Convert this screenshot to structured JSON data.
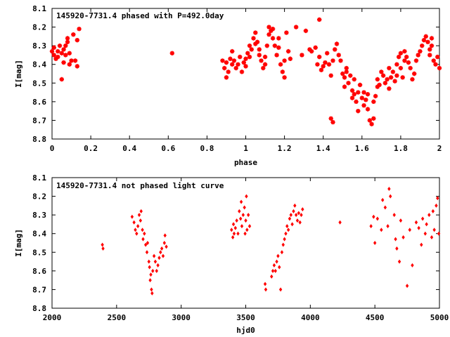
{
  "chart_data": [
    {
      "type": "scatter",
      "title": "145920-7731.4 phased with P=492.0day",
      "xlabel": "phase",
      "ylabel": "I[mag]",
      "xlim": [
        0,
        2
      ],
      "ylim": [
        8.8,
        8.1
      ],
      "y_inverted": true,
      "marker": "star",
      "color": "#ff0000",
      "xticks": [
        "0",
        "0.2",
        "0.4",
        "0.6",
        "0.8",
        "1",
        "1.2",
        "1.4",
        "1.6",
        "1.8",
        "2"
      ],
      "yticks": [
        "8.1",
        "8.2",
        "8.3",
        "8.4",
        "8.5",
        "8.6",
        "8.7",
        "8.8"
      ],
      "points": [
        [
          0.0,
          8.33
        ],
        [
          0.01,
          8.31
        ],
        [
          0.01,
          8.35
        ],
        [
          0.02,
          8.37
        ],
        [
          0.03,
          8.33
        ],
        [
          0.03,
          8.36
        ],
        [
          0.04,
          8.3
        ],
        [
          0.05,
          8.34
        ],
        [
          0.05,
          8.48
        ],
        [
          0.06,
          8.39
        ],
        [
          0.06,
          8.32
        ],
        [
          0.07,
          8.35
        ],
        [
          0.07,
          8.3
        ],
        [
          0.08,
          8.28
        ],
        [
          0.08,
          8.26
        ],
        [
          0.09,
          8.34
        ],
        [
          0.09,
          8.4
        ],
        [
          0.1,
          8.38
        ],
        [
          0.11,
          8.24
        ],
        [
          0.12,
          8.38
        ],
        [
          0.13,
          8.27
        ],
        [
          0.13,
          8.41
        ],
        [
          0.14,
          8.21
        ],
        [
          0.62,
          8.34
        ],
        [
          0.88,
          8.38
        ],
        [
          0.89,
          8.42
        ],
        [
          0.9,
          8.39
        ],
        [
          0.9,
          8.47
        ],
        [
          0.91,
          8.44
        ],
        [
          0.92,
          8.37
        ],
        [
          0.93,
          8.4
        ],
        [
          0.93,
          8.33
        ],
        [
          0.94,
          8.38
        ],
        [
          0.95,
          8.42
        ],
        [
          0.96,
          8.4
        ],
        [
          0.97,
          8.36
        ],
        [
          0.98,
          8.44
        ],
        [
          0.99,
          8.39
        ],
        [
          1.0,
          8.41
        ],
        [
          1.0,
          8.37
        ],
        [
          1.01,
          8.34
        ],
        [
          1.02,
          8.3
        ],
        [
          1.02,
          8.36
        ],
        [
          1.03,
          8.32
        ],
        [
          1.04,
          8.26
        ],
        [
          1.05,
          8.23
        ],
        [
          1.05,
          8.29
        ],
        [
          1.06,
          8.28
        ],
        [
          1.07,
          8.32
        ],
        [
          1.07,
          8.35
        ],
        [
          1.08,
          8.38
        ],
        [
          1.09,
          8.42
        ],
        [
          1.1,
          8.4
        ],
        [
          1.1,
          8.36
        ],
        [
          1.11,
          8.3
        ],
        [
          1.12,
          8.24
        ],
        [
          1.12,
          8.2
        ],
        [
          1.13,
          8.22
        ],
        [
          1.14,
          8.26
        ],
        [
          1.14,
          8.21
        ],
        [
          1.15,
          8.3
        ],
        [
          1.16,
          8.35
        ],
        [
          1.17,
          8.26
        ],
        [
          1.17,
          8.31
        ],
        [
          1.18,
          8.4
        ],
        [
          1.19,
          8.44
        ],
        [
          1.2,
          8.47
        ],
        [
          1.2,
          8.38
        ],
        [
          1.21,
          8.23
        ],
        [
          1.22,
          8.33
        ],
        [
          1.23,
          8.37
        ],
        [
          1.26,
          8.2
        ],
        [
          1.29,
          8.35
        ],
        [
          1.31,
          8.22
        ],
        [
          1.33,
          8.32
        ],
        [
          1.34,
          8.33
        ],
        [
          1.36,
          8.31
        ],
        [
          1.37,
          8.4
        ],
        [
          1.38,
          8.16
        ],
        [
          1.38,
          8.36
        ],
        [
          1.39,
          8.43
        ],
        [
          1.4,
          8.41
        ],
        [
          1.41,
          8.39
        ],
        [
          1.42,
          8.34
        ],
        [
          1.43,
          8.4
        ],
        [
          1.44,
          8.46
        ],
        [
          1.44,
          8.69
        ],
        [
          1.45,
          8.71
        ],
        [
          1.45,
          8.38
        ],
        [
          1.46,
          8.32
        ],
        [
          1.47,
          8.29
        ],
        [
          1.48,
          8.35
        ],
        [
          1.49,
          8.38
        ],
        [
          1.5,
          8.45
        ],
        [
          1.51,
          8.52
        ],
        [
          1.51,
          8.47
        ],
        [
          1.52,
          8.42
        ],
        [
          1.53,
          8.5
        ],
        [
          1.54,
          8.46
        ],
        [
          1.55,
          8.54
        ],
        [
          1.56,
          8.48
        ],
        [
          1.56,
          8.56
        ],
        [
          1.57,
          8.6
        ],
        [
          1.58,
          8.55
        ],
        [
          1.58,
          8.65
        ],
        [
          1.59,
          8.51
        ],
        [
          1.6,
          8.58
        ],
        [
          1.61,
          8.62
        ],
        [
          1.61,
          8.55
        ],
        [
          1.62,
          8.59
        ],
        [
          1.63,
          8.64
        ],
        [
          1.63,
          8.56
        ],
        [
          1.64,
          8.7
        ],
        [
          1.65,
          8.72
        ],
        [
          1.66,
          8.6
        ],
        [
          1.66,
          8.69
        ],
        [
          1.67,
          8.57
        ],
        [
          1.68,
          8.52
        ],
        [
          1.68,
          8.48
        ],
        [
          1.69,
          8.51
        ],
        [
          1.7,
          8.44
        ],
        [
          1.71,
          8.46
        ],
        [
          1.72,
          8.5
        ],
        [
          1.73,
          8.48
        ],
        [
          1.74,
          8.53
        ],
        [
          1.74,
          8.42
        ],
        [
          1.75,
          8.47
        ],
        [
          1.76,
          8.44
        ],
        [
          1.77,
          8.49
        ],
        [
          1.78,
          8.4
        ],
        [
          1.78,
          8.46
        ],
        [
          1.79,
          8.36
        ],
        [
          1.8,
          8.34
        ],
        [
          1.8,
          8.42
        ],
        [
          1.81,
          8.47
        ],
        [
          1.82,
          8.33
        ],
        [
          1.82,
          8.38
        ],
        [
          1.83,
          8.36
        ],
        [
          1.84,
          8.39
        ],
        [
          1.85,
          8.42
        ],
        [
          1.86,
          8.48
        ],
        [
          1.87,
          8.45
        ],
        [
          1.88,
          8.38
        ],
        [
          1.89,
          8.35
        ],
        [
          1.9,
          8.33
        ],
        [
          1.91,
          8.3
        ],
        [
          1.92,
          8.27
        ],
        [
          1.93,
          8.25
        ],
        [
          1.94,
          8.28
        ],
        [
          1.95,
          8.32
        ],
        [
          1.95,
          8.35
        ],
        [
          1.96,
          8.3
        ],
        [
          1.97,
          8.38
        ],
        [
          1.98,
          8.4
        ],
        [
          1.99,
          8.36
        ],
        [
          2.0,
          8.42
        ],
        [
          1.96,
          8.26
        ],
        [
          1.52,
          8.44
        ],
        [
          1.55,
          8.58
        ]
      ]
    },
    {
      "type": "scatter",
      "title": "145920-7731.4 not phased light curve",
      "xlabel": "hjd0",
      "ylabel": "I[mag]",
      "xlim": [
        2000,
        5000
      ],
      "ylim": [
        8.8,
        8.1
      ],
      "y_inverted": true,
      "marker": "diamond",
      "color": "#ff0000",
      "xticks": [
        "2000",
        "2500",
        "3000",
        "3500",
        "4000",
        "4500",
        "5000"
      ],
      "yticks": [
        "8.1",
        "8.2",
        "8.3",
        "8.4",
        "8.5",
        "8.6",
        "8.7",
        "8.8"
      ],
      "points": [
        [
          2390,
          8.46
        ],
        [
          2395,
          8.48
        ],
        [
          2620,
          8.31
        ],
        [
          2635,
          8.34
        ],
        [
          2645,
          8.38
        ],
        [
          2655,
          8.4
        ],
        [
          2665,
          8.36
        ],
        [
          2675,
          8.3
        ],
        [
          2685,
          8.33
        ],
        [
          2690,
          8.28
        ],
        [
          2700,
          8.38
        ],
        [
          2705,
          8.43
        ],
        [
          2715,
          8.4
        ],
        [
          2725,
          8.46
        ],
        [
          2735,
          8.5
        ],
        [
          2740,
          8.45
        ],
        [
          2750,
          8.55
        ],
        [
          2755,
          8.58
        ],
        [
          2760,
          8.65
        ],
        [
          2765,
          8.62
        ],
        [
          2770,
          8.7
        ],
        [
          2775,
          8.72
        ],
        [
          2780,
          8.6
        ],
        [
          2790,
          8.52
        ],
        [
          2800,
          8.55
        ],
        [
          2810,
          8.6
        ],
        [
          2820,
          8.57
        ],
        [
          2830,
          8.53
        ],
        [
          2840,
          8.5
        ],
        [
          2850,
          8.48
        ],
        [
          2860,
          8.52
        ],
        [
          2870,
          8.45
        ],
        [
          2875,
          8.41
        ],
        [
          2885,
          8.47
        ],
        [
          3390,
          8.38
        ],
        [
          3400,
          8.42
        ],
        [
          3405,
          8.35
        ],
        [
          3410,
          8.4
        ],
        [
          3420,
          8.37
        ],
        [
          3430,
          8.33
        ],
        [
          3440,
          8.4
        ],
        [
          3450,
          8.28
        ],
        [
          3460,
          8.32
        ],
        [
          3465,
          8.23
        ],
        [
          3470,
          8.36
        ],
        [
          3480,
          8.3
        ],
        [
          3490,
          8.26
        ],
        [
          3495,
          8.4
        ],
        [
          3500,
          8.33
        ],
        [
          3505,
          8.2
        ],
        [
          3510,
          8.38
        ],
        [
          3520,
          8.3
        ],
        [
          3530,
          8.36
        ],
        [
          3650,
          8.67
        ],
        [
          3655,
          8.7
        ],
        [
          3700,
          8.63
        ],
        [
          3710,
          8.6
        ],
        [
          3720,
          8.57
        ],
        [
          3730,
          8.6
        ],
        [
          3740,
          8.55
        ],
        [
          3750,
          8.52
        ],
        [
          3760,
          8.58
        ],
        [
          3770,
          8.7
        ],
        [
          3780,
          8.5
        ],
        [
          3790,
          8.46
        ],
        [
          3800,
          8.43
        ],
        [
          3810,
          8.4
        ],
        [
          3820,
          8.36
        ],
        [
          3830,
          8.38
        ],
        [
          3840,
          8.32
        ],
        [
          3850,
          8.3
        ],
        [
          3860,
          8.35
        ],
        [
          3870,
          8.28
        ],
        [
          3880,
          8.25
        ],
        [
          3890,
          8.3
        ],
        [
          3900,
          8.33
        ],
        [
          3910,
          8.29
        ],
        [
          3920,
          8.34
        ],
        [
          3930,
          8.3
        ],
        [
          3940,
          8.27
        ],
        [
          4230,
          8.34
        ],
        [
          4470,
          8.36
        ],
        [
          4490,
          8.31
        ],
        [
          4500,
          8.45
        ],
        [
          4520,
          8.32
        ],
        [
          4550,
          8.38
        ],
        [
          4560,
          8.22
        ],
        [
          4580,
          8.26
        ],
        [
          4600,
          8.36
        ],
        [
          4610,
          8.16
        ],
        [
          4620,
          8.2
        ],
        [
          4650,
          8.3
        ],
        [
          4660,
          8.43
        ],
        [
          4670,
          8.48
        ],
        [
          4690,
          8.55
        ],
        [
          4700,
          8.33
        ],
        [
          4720,
          8.42
        ],
        [
          4750,
          8.68
        ],
        [
          4770,
          8.38
        ],
        [
          4790,
          8.57
        ],
        [
          4820,
          8.34
        ],
        [
          4840,
          8.37
        ],
        [
          4860,
          8.46
        ],
        [
          4870,
          8.32
        ],
        [
          4890,
          8.4
        ],
        [
          4900,
          8.35
        ],
        [
          4920,
          8.3
        ],
        [
          4940,
          8.42
        ],
        [
          4950,
          8.28
        ],
        [
          4960,
          8.38
        ],
        [
          4975,
          8.25
        ],
        [
          4985,
          8.21
        ],
        [
          4995,
          8.4
        ]
      ]
    }
  ]
}
